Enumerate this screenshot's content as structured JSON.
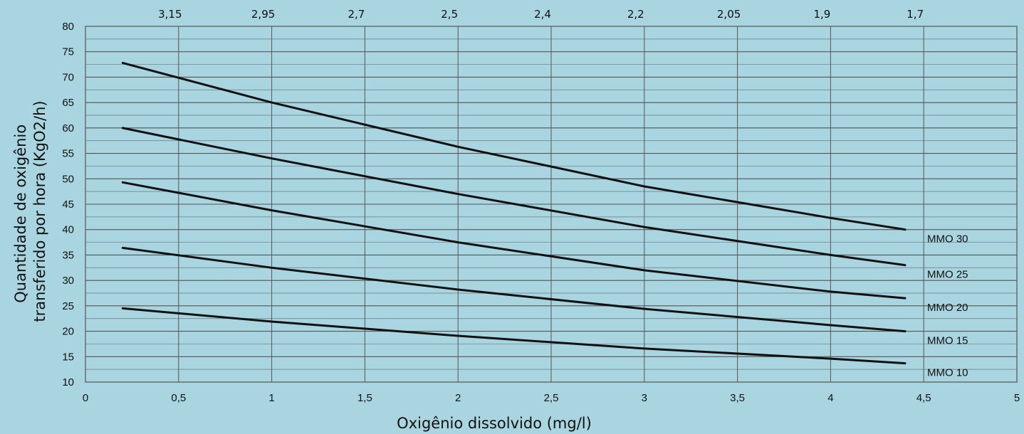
{
  "chart_data": {
    "type": "line",
    "xlabel": "Oxigênio dissolvido (mg/l)",
    "ylabel_lines": [
      "Quantidade de oxigênio",
      "transferido por hora (KgO2/h)"
    ],
    "xlim": [
      0,
      5
    ],
    "ylim": [
      10,
      80
    ],
    "x_ticks": [
      "0",
      "0,5",
      "1",
      "1,5",
      "2",
      "2,5",
      "3",
      "3,5",
      "4",
      "4,5",
      "5"
    ],
    "y_ticks": [
      "10",
      "15",
      "20",
      "25",
      "30",
      "35",
      "40",
      "45",
      "50",
      "55",
      "60",
      "65",
      "70",
      "75",
      "80"
    ],
    "top_axis_ticks": [
      "3,15",
      "2,95",
      "2,7",
      "2,5",
      "2,4",
      "2,2",
      "2,05",
      "1,9",
      "1,7"
    ],
    "grid": true,
    "series": [
      {
        "name": "MMO 30",
        "x": [
          0.2,
          1,
          2,
          3,
          4,
          4.4
        ],
        "y": [
          72.8,
          65,
          56.3,
          48.5,
          42.3,
          40
        ]
      },
      {
        "name": "MMO 25",
        "x": [
          0.2,
          1,
          2,
          3,
          4,
          4.4
        ],
        "y": [
          60,
          54,
          47,
          40.5,
          35,
          33
        ]
      },
      {
        "name": "MMO 20",
        "x": [
          0.2,
          1,
          2,
          3,
          4,
          4.4
        ],
        "y": [
          49.3,
          43.8,
          37.5,
          32,
          27.8,
          26.5
        ]
      },
      {
        "name": "MMO 15",
        "x": [
          0.2,
          1,
          2,
          3,
          4,
          4.4
        ],
        "y": [
          36.4,
          32.5,
          28.2,
          24.4,
          21.2,
          20
        ]
      },
      {
        "name": "MMO 10",
        "x": [
          0.2,
          1,
          2,
          3,
          4,
          4.4
        ],
        "y": [
          24.5,
          21.9,
          19.1,
          16.6,
          14.6,
          13.7
        ]
      }
    ]
  }
}
